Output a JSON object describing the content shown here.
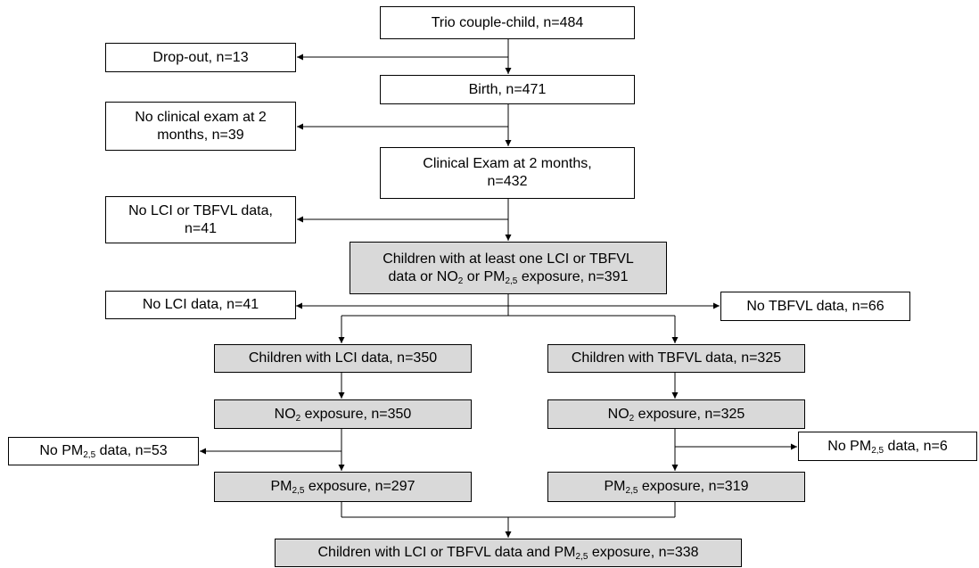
{
  "colors": {
    "line": "#000000",
    "box_fill": "#ffffff",
    "highlight_fill": "#d9d9d9"
  },
  "nodes": {
    "trio": {
      "text": "Trio couple-child, n=484"
    },
    "dropout": {
      "text": "Drop-out, n=13"
    },
    "birth": {
      "text": "Birth, n=471"
    },
    "no_clinical": {
      "line1": "No clinical exam at 2",
      "line2": "months, n=39"
    },
    "clinical": {
      "line1": "Clinical Exam at 2 months,",
      "line2": "n=432"
    },
    "no_lci_tbfvl": {
      "line1": "No LCI or TBFVL data,",
      "line2": "n=41"
    },
    "at_least_one": {
      "line1": "Children with at least one LCI or TBFVL",
      "line2_a": "data or NO",
      "line2_sub1": "2",
      "line2_b": " or PM",
      "line2_sub2": "2,5",
      "line2_c": " exposure, n=391"
    },
    "no_lci": {
      "text": "No LCI data, n=41"
    },
    "no_tbfvl": {
      "text": "No TBFVL data, n=66"
    },
    "lci": {
      "text": "Children with LCI data, n=350"
    },
    "tbfvl": {
      "text": "Children with TBFVL data, n=325"
    },
    "no2_left": {
      "a": "NO",
      "sub": "2",
      "b": " exposure, n=350"
    },
    "no2_right": {
      "a": "NO",
      "sub": "2",
      "b": " exposure, n=325"
    },
    "no_pm_left": {
      "a": "No PM",
      "sub": "2,5",
      "b": " data, n=53"
    },
    "no_pm_right": {
      "a": "No PM",
      "sub": "2,5",
      "b": " data, n=6"
    },
    "pm_left": {
      "a": "PM",
      "sub": "2,5",
      "b": " exposure, n=297"
    },
    "pm_right": {
      "a": "PM",
      "sub": "2,5",
      "b": " exposure, n=319"
    },
    "final": {
      "a": "Children with LCI or TBFVL data and PM",
      "sub": "2,5",
      "b": " exposure, n=338"
    }
  }
}
